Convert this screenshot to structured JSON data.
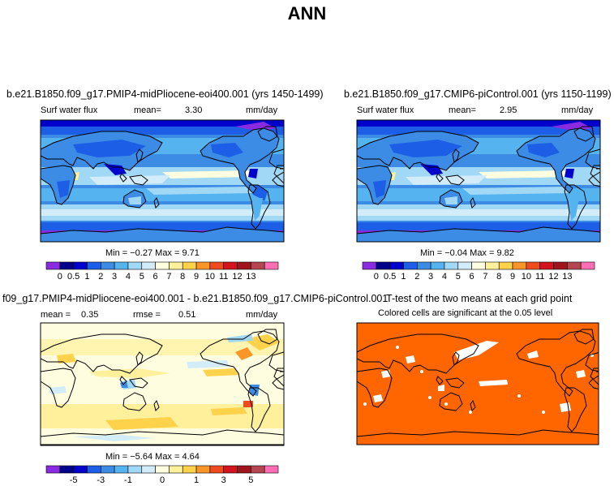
{
  "title": "ANN",
  "panels": [
    {
      "title": "b.e21.B1850.f09_g17.PMIP4-midPliocene-eoi400.001 (yrs 1450-1499)",
      "variable": "Surf water flux",
      "stat_label": "mean=",
      "stat_value": "3.30",
      "units": "mm/day",
      "min_max": "Min = −0.27 Max = 9.71"
    },
    {
      "title": "b.e21.B1850.f09_g17.CMIP6-piControl.001 (yrs 1150-1199)",
      "variable": "Surf water flux",
      "stat_label": "mean=",
      "stat_value": "2.95",
      "units": "mm/day",
      "min_max": "Min = −0.04 Max = 9.82"
    },
    {
      "title": "f09_g17.PMIP4-midPliocene-eoi400.001 - b.e21.B1850.f09_g17.CMIP6-piControl.001",
      "mean_label": "mean =",
      "mean_value": "0.35",
      "rmse_label": "rmse =",
      "rmse_value": "0.51",
      "units": "mm/day",
      "min_max": "Min = −5.64 Max = 4.64"
    },
    {
      "title": "T-test of the two means at each grid point",
      "subtitle": "Colored cells are significant at the 0.05 level"
    }
  ],
  "colorbars": {
    "absolute": {
      "labels": [
        "0",
        "0.5",
        "1",
        "2",
        "3",
        "4",
        "5",
        "6",
        "7",
        "8",
        "9",
        "10",
        "11",
        "12",
        "13"
      ],
      "colors": [
        "#8a2be2",
        "#00008b",
        "#0000cd",
        "#1c5fe6",
        "#3c8ce6",
        "#55b4f0",
        "#a0d8f5",
        "#d2ecfa",
        "#fffde0",
        "#fff09b",
        "#ffd24b",
        "#fa9628",
        "#f04b1e",
        "#d2141e",
        "#a0141e",
        "#b44650",
        "#ff6eb4"
      ]
    },
    "difference": {
      "labels": [
        "-5",
        "-3",
        "-1",
        "0",
        "1",
        "3",
        "5"
      ],
      "colors": [
        "#8a2be2",
        "#00008b",
        "#0000cd",
        "#1c5fe6",
        "#3c8ce6",
        "#55b4f0",
        "#a0d8f5",
        "#d2ecfa",
        "#fffde0",
        "#fff09b",
        "#ffd24b",
        "#fa9628",
        "#f04b1e",
        "#d2141e",
        "#a0141e",
        "#b44650",
        "#ff6eb4"
      ]
    }
  }
}
